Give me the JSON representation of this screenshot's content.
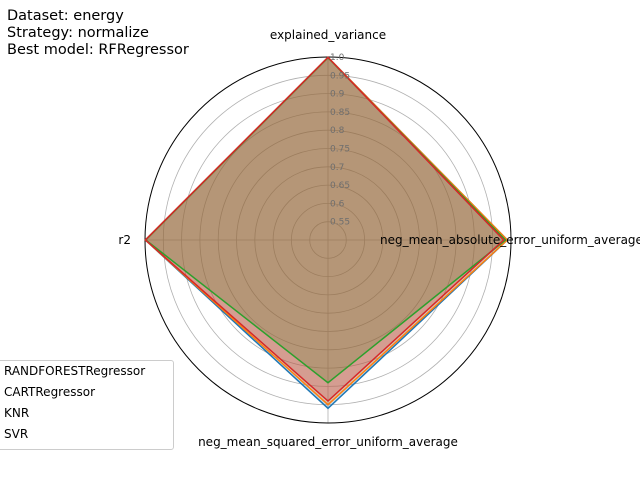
{
  "header": {
    "line1": "Dataset: energy",
    "line2": "Strategy: normalize",
    "line3": "Best model: RFRegressor"
  },
  "chart_data": {
    "type": "radar",
    "axes": [
      "explained_variance",
      "neg_mean_absolute_error_uniform_average",
      "neg_mean_squared_error_uniform_average",
      "r2"
    ],
    "rlim": [
      0.5,
      1.0
    ],
    "rticks": [
      "0.55",
      "0.6",
      "0.65",
      "0.7",
      "0.75",
      "0.8",
      "0.85",
      "0.9",
      "0.95",
      "1.0"
    ],
    "grid": true,
    "legend_position": "lower-left",
    "series": [
      {
        "name": "RANDFORESTRegressor",
        "color": "#1f77b4",
        "values": [
          0.999,
          0.99,
          0.96,
          0.999
        ]
      },
      {
        "name": "CARTRegressor",
        "color": "#ff7f0e",
        "values": [
          0.999,
          0.99,
          0.95,
          0.999
        ]
      },
      {
        "name": "KNR",
        "color": "#2ca02c",
        "values": [
          0.998,
          0.985,
          0.89,
          0.998
        ]
      },
      {
        "name": "SVR",
        "color": "#d62728",
        "values": [
          0.999,
          0.98,
          0.94,
          0.999
        ]
      }
    ]
  }
}
